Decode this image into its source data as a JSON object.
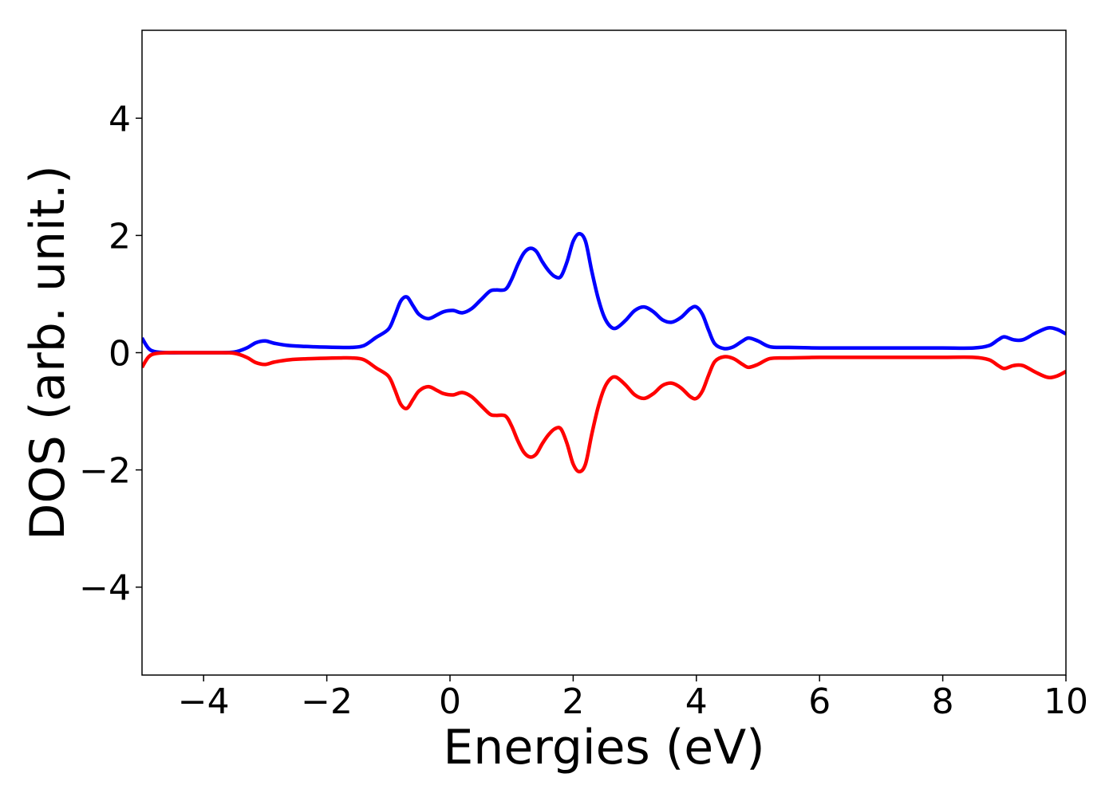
{
  "chart_data": {
    "type": "line",
    "xlabel": "Energies (eV)",
    "ylabel": "DOS (arb. unit.)",
    "xlim": [
      -5,
      10
    ],
    "ylim": [
      -5.5,
      5.5
    ],
    "xticks": [
      -4,
      -2,
      0,
      2,
      4,
      6,
      8,
      10
    ],
    "yticks": [
      -4,
      -2,
      0,
      2,
      4
    ],
    "grid": false,
    "series": [
      {
        "color": "#0000ff",
        "x": [
          -5,
          -4.9,
          -4.8,
          -4.6,
          -4.2,
          -3.8,
          -3.5,
          -3.3,
          -3.15,
          -3.0,
          -2.85,
          -2.6,
          -2.2,
          -1.8,
          -1.6,
          -1.4,
          -1.2,
          -1.0,
          -0.9,
          -0.8,
          -0.7,
          -0.6,
          -0.5,
          -0.35,
          -0.2,
          -0.1,
          0.05,
          0.2,
          0.35,
          0.5,
          0.65,
          0.75,
          0.9,
          1.0,
          1.1,
          1.2,
          1.3,
          1.4,
          1.5,
          1.6,
          1.7,
          1.8,
          1.9,
          2.0,
          2.1,
          2.2,
          2.3,
          2.4,
          2.5,
          2.6,
          2.7,
          2.85,
          3.0,
          3.15,
          3.3,
          3.45,
          3.6,
          3.75,
          3.9,
          4.0,
          4.1,
          4.2,
          4.3,
          4.45,
          4.6,
          4.75,
          4.85,
          5.0,
          5.2,
          5.5,
          6.0,
          6.5,
          7.0,
          7.5,
          8.0,
          8.5,
          8.75,
          8.9,
          9.0,
          9.15,
          9.3,
          9.5,
          9.7,
          9.85,
          10.0
        ],
        "y": [
          0.25,
          0.08,
          0.02,
          0.0,
          0.0,
          0.0,
          0.01,
          0.08,
          0.17,
          0.2,
          0.16,
          0.12,
          0.1,
          0.09,
          0.09,
          0.12,
          0.26,
          0.4,
          0.62,
          0.88,
          0.95,
          0.8,
          0.65,
          0.58,
          0.65,
          0.7,
          0.72,
          0.68,
          0.75,
          0.9,
          1.05,
          1.07,
          1.08,
          1.25,
          1.5,
          1.7,
          1.78,
          1.73,
          1.55,
          1.4,
          1.3,
          1.3,
          1.55,
          1.9,
          2.03,
          1.9,
          1.4,
          0.95,
          0.62,
          0.45,
          0.42,
          0.55,
          0.72,
          0.78,
          0.7,
          0.56,
          0.52,
          0.6,
          0.75,
          0.78,
          0.65,
          0.38,
          0.15,
          0.07,
          0.1,
          0.2,
          0.25,
          0.2,
          0.1,
          0.09,
          0.08,
          0.08,
          0.08,
          0.08,
          0.08,
          0.08,
          0.12,
          0.22,
          0.27,
          0.22,
          0.22,
          0.33,
          0.42,
          0.4,
          0.32
        ]
      },
      {
        "color": "#ff0000",
        "x": [
          -5,
          -4.9,
          -4.8,
          -4.6,
          -4.2,
          -3.8,
          -3.5,
          -3.3,
          -3.15,
          -3.0,
          -2.85,
          -2.6,
          -2.2,
          -1.8,
          -1.6,
          -1.4,
          -1.2,
          -1.0,
          -0.9,
          -0.8,
          -0.7,
          -0.6,
          -0.5,
          -0.35,
          -0.2,
          -0.1,
          0.05,
          0.2,
          0.35,
          0.5,
          0.65,
          0.75,
          0.9,
          1.0,
          1.1,
          1.2,
          1.3,
          1.4,
          1.5,
          1.6,
          1.7,
          1.8,
          1.9,
          2.0,
          2.1,
          2.2,
          2.3,
          2.4,
          2.5,
          2.6,
          2.7,
          2.85,
          3.0,
          3.15,
          3.3,
          3.45,
          3.6,
          3.75,
          3.9,
          4.0,
          4.1,
          4.2,
          4.3,
          4.45,
          4.6,
          4.75,
          4.85,
          5.0,
          5.2,
          5.5,
          6.0,
          6.5,
          7.0,
          7.5,
          8.0,
          8.5,
          8.75,
          8.9,
          9.0,
          9.15,
          9.3,
          9.5,
          9.7,
          9.85,
          10.0
        ],
        "y": [
          -0.25,
          -0.08,
          -0.02,
          0.0,
          0.0,
          0.0,
          -0.01,
          -0.08,
          -0.17,
          -0.2,
          -0.16,
          -0.12,
          -0.1,
          -0.09,
          -0.09,
          -0.12,
          -0.26,
          -0.4,
          -0.62,
          -0.88,
          -0.95,
          -0.8,
          -0.65,
          -0.58,
          -0.65,
          -0.7,
          -0.72,
          -0.68,
          -0.75,
          -0.9,
          -1.05,
          -1.07,
          -1.08,
          -1.25,
          -1.5,
          -1.7,
          -1.78,
          -1.73,
          -1.55,
          -1.4,
          -1.3,
          -1.3,
          -1.55,
          -1.9,
          -2.03,
          -1.9,
          -1.4,
          -0.95,
          -0.62,
          -0.45,
          -0.42,
          -0.55,
          -0.72,
          -0.78,
          -0.7,
          -0.56,
          -0.52,
          -0.6,
          -0.75,
          -0.78,
          -0.65,
          -0.38,
          -0.15,
          -0.07,
          -0.1,
          -0.2,
          -0.25,
          -0.2,
          -0.1,
          -0.09,
          -0.08,
          -0.08,
          -0.08,
          -0.08,
          -0.08,
          -0.08,
          -0.12,
          -0.22,
          -0.27,
          -0.22,
          -0.22,
          -0.33,
          -0.42,
          -0.4,
          -0.32
        ]
      }
    ]
  }
}
